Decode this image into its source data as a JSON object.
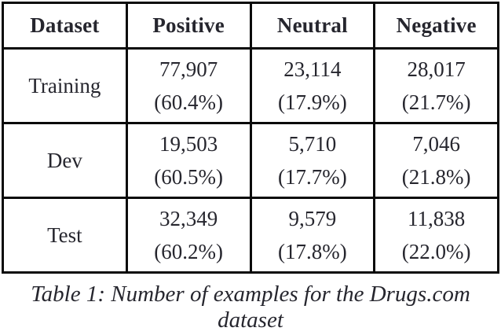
{
  "table": {
    "columns": [
      "Dataset",
      "Positive",
      "Neutral",
      "Negative"
    ],
    "rows": [
      {
        "label": "Training",
        "cells": [
          {
            "count": "77,907",
            "pct": "(60.4%)"
          },
          {
            "count": "23,114",
            "pct": "(17.9%)"
          },
          {
            "count": "28,017",
            "pct": "(21.7%)"
          }
        ]
      },
      {
        "label": "Dev",
        "cells": [
          {
            "count": "19,503",
            "pct": "(60.5%)"
          },
          {
            "count": "5,710",
            "pct": "(17.7%)"
          },
          {
            "count": "7,046",
            "pct": "(21.8%)"
          }
        ]
      },
      {
        "label": "Test",
        "cells": [
          {
            "count": "32,349",
            "pct": "(60.2%)"
          },
          {
            "count": "9,579",
            "pct": "(17.8%)"
          },
          {
            "count": "11,838",
            "pct": "(22.0%)"
          }
        ]
      }
    ]
  },
  "caption": "Table 1: Number of examples for the Drugs.com dataset",
  "colors": {
    "text": "#26262e",
    "border": "#0a0a0a",
    "background": "#ffffff"
  }
}
